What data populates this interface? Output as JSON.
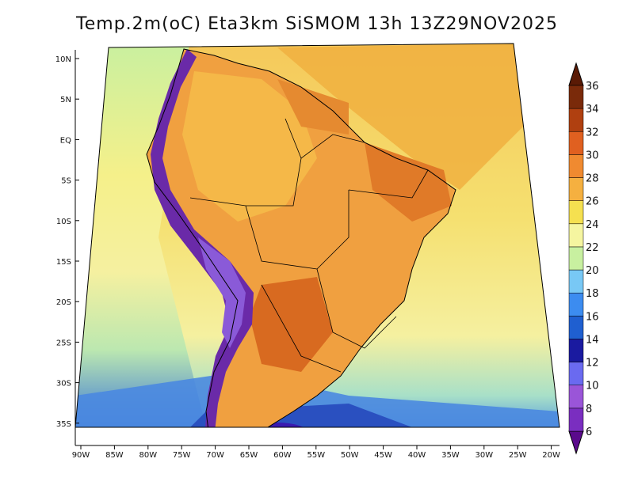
{
  "title": "Temp.2m(oC) Eta3km SiSMOM 13h 13Z29NOV2025",
  "lat_ticks": [
    "10N",
    "5N",
    "EQ",
    "5S",
    "10S",
    "15S",
    "20S",
    "25S",
    "30S",
    "35S"
  ],
  "lon_ticks": [
    "90W",
    "85W",
    "80W",
    "75W",
    "70W",
    "65W",
    "60W",
    "55W",
    "50W",
    "45W",
    "40W",
    "35W",
    "30W",
    "25W",
    "20W"
  ],
  "colorbar": {
    "labels": [
      "6",
      "8",
      "10",
      "12",
      "14",
      "16",
      "18",
      "20",
      "22",
      "24",
      "26",
      "28",
      "30",
      "32",
      "34",
      "36"
    ],
    "colors": [
      "#5a0a8c",
      "#7a2ec0",
      "#9a55d8",
      "#6a6af0",
      "#1a1aa0",
      "#1f5fd0",
      "#3c8cf0",
      "#78c8f5",
      "#c8f0a0",
      "#f5f5a0",
      "#f5e050",
      "#f5b040",
      "#f08a30",
      "#e06020",
      "#b04010",
      "#7a2a0a",
      "#5a1a05"
    ]
  },
  "colors": {
    "ocean_north": "#f5d870",
    "ocean_south": "#f5f0a0",
    "land_warm": "#f0a040",
    "land_hot": "#e07a28",
    "andes": "#6a2aa8",
    "south_cold": "#3c78d8",
    "coast_line": "#000000"
  }
}
